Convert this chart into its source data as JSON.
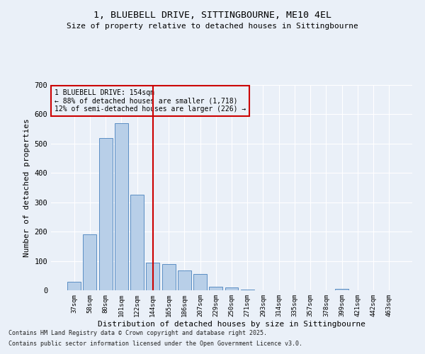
{
  "title": "1, BLUEBELL DRIVE, SITTINGBOURNE, ME10 4EL",
  "subtitle": "Size of property relative to detached houses in Sittingbourne",
  "xlabel": "Distribution of detached houses by size in Sittingbourne",
  "ylabel": "Number of detached properties",
  "categories": [
    "37sqm",
    "58sqm",
    "80sqm",
    "101sqm",
    "122sqm",
    "144sqm",
    "165sqm",
    "186sqm",
    "207sqm",
    "229sqm",
    "250sqm",
    "271sqm",
    "293sqm",
    "314sqm",
    "335sqm",
    "357sqm",
    "378sqm",
    "399sqm",
    "421sqm",
    "442sqm",
    "463sqm"
  ],
  "values": [
    28,
    190,
    520,
    570,
    325,
    95,
    90,
    68,
    55,
    13,
    10,
    3,
    1,
    0,
    0,
    0,
    0,
    6,
    0,
    0,
    0
  ],
  "bar_color": "#b8cfe8",
  "bar_edge_color": "#5b8ec4",
  "marker_line_color": "#cc0000",
  "annotation_line1": "1 BLUEBELL DRIVE: 154sqm",
  "annotation_line2": "← 88% of detached houses are smaller (1,718)",
  "annotation_line3": "12% of semi-detached houses are larger (226) →",
  "annotation_box_edge_color": "#cc0000",
  "ylim": [
    0,
    700
  ],
  "yticks": [
    0,
    100,
    200,
    300,
    400,
    500,
    600,
    700
  ],
  "footer1": "Contains HM Land Registry data © Crown copyright and database right 2025.",
  "footer2": "Contains public sector information licensed under the Open Government Licence v3.0.",
  "background_color": "#eaf0f8",
  "grid_color": "#ffffff"
}
